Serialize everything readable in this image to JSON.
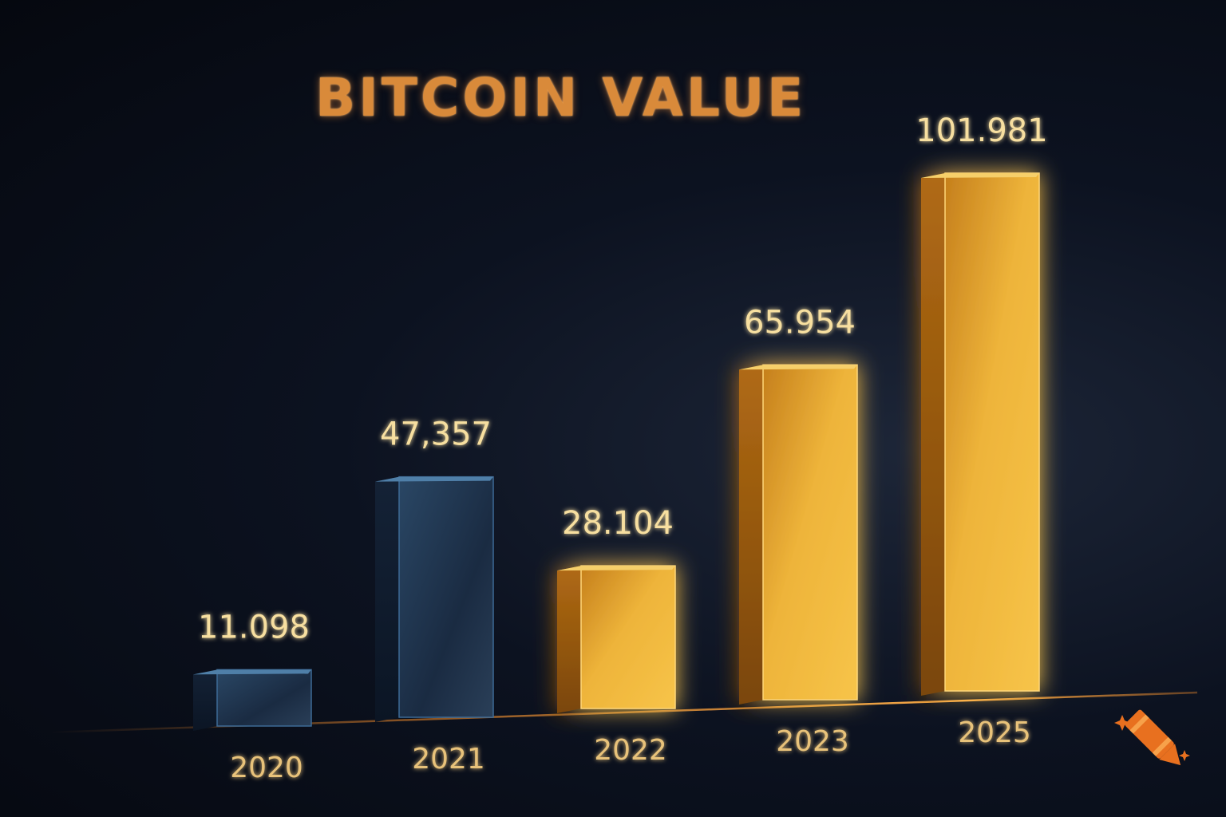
{
  "chart_data": {
    "type": "bar",
    "title": "BITCOIN VALUE",
    "xlabel": "",
    "ylabel": "",
    "categories": [
      "2020",
      "2021",
      "2022",
      "2023",
      "2025"
    ],
    "values": [
      11098,
      47357,
      28104,
      65954,
      101981
    ],
    "value_labels": [
      "11.098",
      "47,357",
      "28.104",
      "65.954",
      "101.981"
    ],
    "ylim": [
      0,
      110000
    ],
    "grid": false,
    "legend": "none",
    "bar_colors": [
      "#1f3550",
      "#1f3550",
      "#e1a52a",
      "#eba62a",
      "#f0b030"
    ],
    "bar_style": [
      "blue",
      "blue",
      "gold",
      "gold",
      "gold"
    ]
  },
  "colors": {
    "title": "#d98a3a",
    "value_label": "#f7dfa0",
    "tick_label": "#e8c27a",
    "baseline": "#e8862a",
    "logo": "#e8701f"
  },
  "logo": {
    "icon": "crayon-sparkle-icon"
  }
}
